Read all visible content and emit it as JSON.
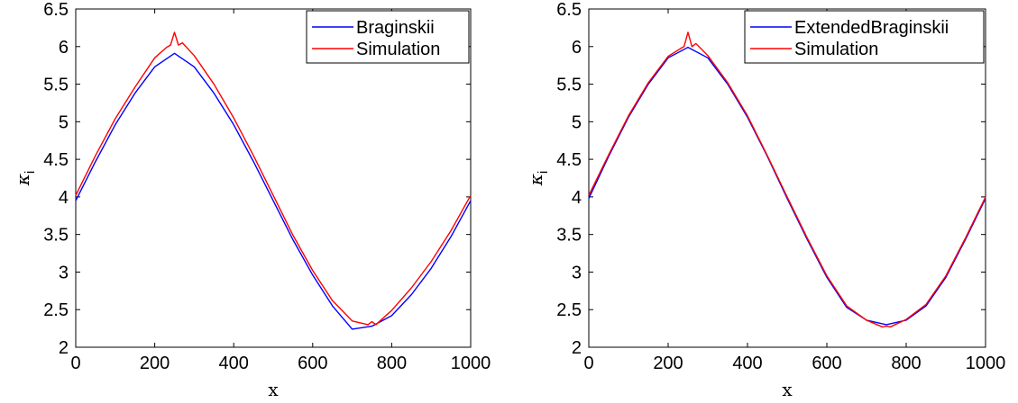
{
  "chart_data": [
    {
      "type": "line",
      "xlabel": "x",
      "ylabel": "κ",
      "ylabel_sub": "i",
      "xlim": [
        0,
        1000
      ],
      "ylim": [
        2,
        6.5
      ],
      "xticks": [
        "0",
        "200",
        "400",
        "600",
        "800",
        "1000"
      ],
      "yticks": [
        "2",
        "2.5",
        "3",
        "3.5",
        "4",
        "4.5",
        "5",
        "5.5",
        "6",
        "6.5"
      ],
      "xtick_values": [
        0,
        200,
        400,
        600,
        800,
        1000
      ],
      "ytick_values": [
        2,
        2.5,
        3,
        3.5,
        4,
        4.5,
        5,
        5.5,
        6,
        6.5
      ],
      "legend_position": "top-right",
      "series": [
        {
          "name": "Braginskii",
          "color": "#0000ff",
          "x": [
            0,
            50,
            100,
            150,
            200,
            250,
            300,
            350,
            400,
            450,
            500,
            550,
            600,
            650,
            700,
            750,
            800,
            850,
            900,
            950,
            1000
          ],
          "y": [
            3.95,
            4.47,
            4.96,
            5.38,
            5.73,
            5.91,
            5.73,
            5.38,
            4.96,
            4.47,
            3.95,
            3.43,
            2.96,
            2.55,
            2.24,
            2.28,
            2.42,
            2.7,
            3.05,
            3.47,
            3.95
          ]
        },
        {
          "name": "Simulation",
          "color": "#ff0000",
          "x": [
            0,
            50,
            100,
            150,
            200,
            230,
            240,
            250,
            260,
            270,
            300,
            350,
            400,
            450,
            500,
            550,
            600,
            650,
            700,
            740,
            750,
            760,
            800,
            850,
            900,
            950,
            1000
          ],
          "y": [
            4.02,
            4.55,
            5.04,
            5.46,
            5.85,
            5.99,
            6.02,
            6.19,
            6.02,
            6.05,
            5.88,
            5.5,
            5.05,
            4.55,
            4.02,
            3.49,
            3.02,
            2.62,
            2.35,
            2.3,
            2.34,
            2.3,
            2.49,
            2.79,
            3.14,
            3.55,
            4.02
          ]
        }
      ]
    },
    {
      "type": "line",
      "xlabel": "x",
      "ylabel": "κ",
      "ylabel_sub": "i",
      "xlim": [
        0,
        1000
      ],
      "ylim": [
        2,
        6.5
      ],
      "xticks": [
        "0",
        "200",
        "400",
        "600",
        "800",
        "1000"
      ],
      "yticks": [
        "2",
        "2.5",
        "3",
        "3.5",
        "4",
        "4.5",
        "5",
        "5.5",
        "6",
        "6.5"
      ],
      "xtick_values": [
        0,
        200,
        400,
        600,
        800,
        1000
      ],
      "ytick_values": [
        2,
        2.5,
        3,
        3.5,
        4,
        4.5,
        5,
        5.5,
        6,
        6.5
      ],
      "legend_position": "top-right",
      "series": [
        {
          "name": "ExtendedBraginskii",
          "color": "#0000ff",
          "x": [
            0,
            50,
            100,
            150,
            200,
            250,
            300,
            350,
            400,
            450,
            500,
            550,
            600,
            650,
            700,
            750,
            800,
            850,
            900,
            950,
            1000
          ],
          "y": [
            3.98,
            4.54,
            5.06,
            5.5,
            5.85,
            5.99,
            5.85,
            5.5,
            5.06,
            4.54,
            3.98,
            3.44,
            2.93,
            2.53,
            2.36,
            2.3,
            2.36,
            2.55,
            2.93,
            3.44,
            3.98
          ]
        },
        {
          "name": "Simulation",
          "color": "#ff0000",
          "x": [
            0,
            50,
            100,
            150,
            200,
            230,
            240,
            250,
            260,
            270,
            300,
            350,
            400,
            450,
            500,
            550,
            600,
            650,
            700,
            740,
            750,
            760,
            800,
            850,
            900,
            950,
            1000
          ],
          "y": [
            4.02,
            4.56,
            5.08,
            5.52,
            5.87,
            5.97,
            6.0,
            6.19,
            6.0,
            6.04,
            5.88,
            5.52,
            5.08,
            4.55,
            4.0,
            3.46,
            2.95,
            2.55,
            2.36,
            2.27,
            2.28,
            2.27,
            2.37,
            2.57,
            2.95,
            3.46,
            4.0
          ]
        }
      ]
    }
  ]
}
